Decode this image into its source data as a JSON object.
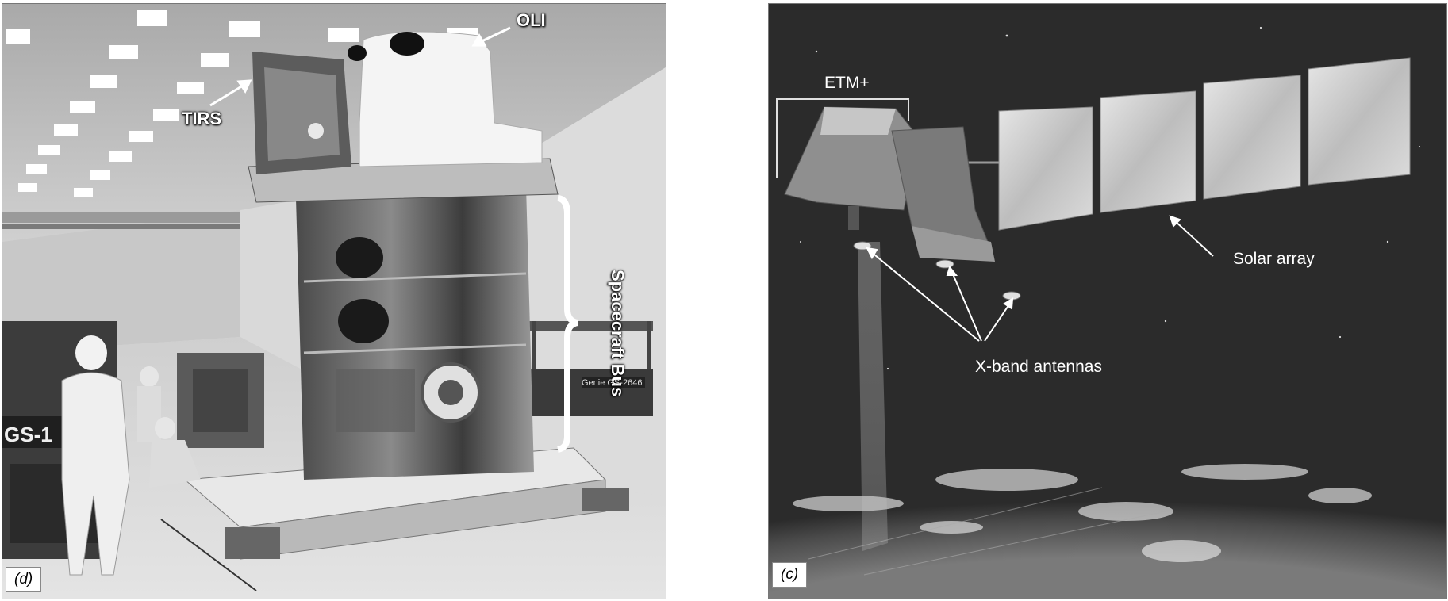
{
  "panel_d": {
    "tag": "(d)",
    "labels": {
      "oli": "OLI",
      "tirs": "TIRS",
      "spacecraft_bus": "Spacecraft Bus",
      "cart_text": "Genie GS-2646",
      "lift_text": "GS-1"
    },
    "colors": {
      "floor": "#cfcfcf",
      "ceiling": "#bdbdbd",
      "foil": "#6e6e6e",
      "label": "#ffffff"
    }
  },
  "panel_c": {
    "tag": "(c)",
    "labels": {
      "etm": "ETM+",
      "solar_array": "Solar array",
      "xband": "X-band antennas"
    },
    "colors": {
      "space": "#2b2b2b",
      "panel": "#cfcfcf",
      "earth": "#5a5a5a"
    }
  }
}
